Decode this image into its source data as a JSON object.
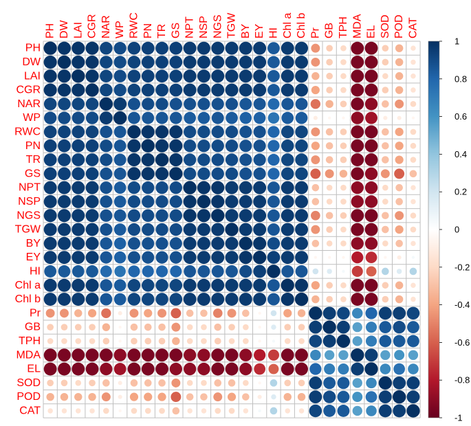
{
  "chart_data": {
    "type": "heatmap",
    "style": "circle correlation matrix",
    "variables": [
      "PH",
      "DW",
      "LAI",
      "CGR",
      "NAR",
      "WP",
      "RWC",
      "PN",
      "TR",
      "GS",
      "NPT",
      "NSP",
      "NGS",
      "TGW",
      "BY",
      "EY",
      "HI",
      "Chl a",
      "Chl b",
      "Pr",
      "GB",
      "TPH",
      "MDA",
      "EL",
      "SOD",
      "POD",
      "CAT"
    ],
    "group_a_size": 19,
    "within_a": [
      [
        1.0,
        0.98,
        0.98,
        0.98,
        0.92,
        0.9,
        0.93,
        0.94,
        0.94,
        0.94,
        0.96,
        0.96,
        0.96,
        0.96,
        0.96,
        0.96,
        0.85,
        0.96,
        0.96
      ],
      [
        0.98,
        1.0,
        0.98,
        0.98,
        0.92,
        0.9,
        0.93,
        0.94,
        0.94,
        0.94,
        0.96,
        0.96,
        0.96,
        0.96,
        0.96,
        0.96,
        0.85,
        0.96,
        0.96
      ],
      [
        0.98,
        0.98,
        1.0,
        0.98,
        0.92,
        0.9,
        0.93,
        0.94,
        0.94,
        0.94,
        0.96,
        0.96,
        0.96,
        0.96,
        0.96,
        0.96,
        0.85,
        0.96,
        0.96
      ],
      [
        0.98,
        0.98,
        0.98,
        1.0,
        0.92,
        0.9,
        0.93,
        0.94,
        0.94,
        0.94,
        0.96,
        0.96,
        0.96,
        0.96,
        0.96,
        0.96,
        0.85,
        0.96,
        0.96
      ],
      [
        0.92,
        0.92,
        0.92,
        0.92,
        1.0,
        0.96,
        0.88,
        0.9,
        0.9,
        0.88,
        0.88,
        0.88,
        0.88,
        0.88,
        0.86,
        0.86,
        0.78,
        0.86,
        0.86
      ],
      [
        0.9,
        0.9,
        0.9,
        0.9,
        0.96,
        1.0,
        0.86,
        0.86,
        0.86,
        0.86,
        0.84,
        0.84,
        0.86,
        0.84,
        0.82,
        0.82,
        0.74,
        0.84,
        0.84
      ],
      [
        0.93,
        0.93,
        0.93,
        0.93,
        0.88,
        0.86,
        1.0,
        0.98,
        0.98,
        0.98,
        0.9,
        0.9,
        0.9,
        0.9,
        0.88,
        0.88,
        0.8,
        0.92,
        0.92
      ],
      [
        0.94,
        0.94,
        0.94,
        0.94,
        0.9,
        0.86,
        0.98,
        1.0,
        0.98,
        0.98,
        0.9,
        0.9,
        0.9,
        0.9,
        0.88,
        0.88,
        0.8,
        0.92,
        0.92
      ],
      [
        0.94,
        0.94,
        0.94,
        0.94,
        0.9,
        0.86,
        0.98,
        0.98,
        1.0,
        0.98,
        0.9,
        0.9,
        0.9,
        0.9,
        0.88,
        0.88,
        0.8,
        0.92,
        0.92
      ],
      [
        0.94,
        0.94,
        0.94,
        0.94,
        0.88,
        0.86,
        0.98,
        0.98,
        0.98,
        1.0,
        0.9,
        0.9,
        0.9,
        0.9,
        0.88,
        0.88,
        0.8,
        0.92,
        0.92
      ],
      [
        0.96,
        0.96,
        0.96,
        0.96,
        0.88,
        0.84,
        0.9,
        0.9,
        0.9,
        0.9,
        1.0,
        0.98,
        0.98,
        0.96,
        0.96,
        0.96,
        0.86,
        0.96,
        0.96
      ],
      [
        0.96,
        0.96,
        0.96,
        0.96,
        0.88,
        0.84,
        0.9,
        0.9,
        0.9,
        0.9,
        0.98,
        1.0,
        0.98,
        0.96,
        0.96,
        0.96,
        0.86,
        0.96,
        0.96
      ],
      [
        0.96,
        0.96,
        0.96,
        0.96,
        0.88,
        0.86,
        0.9,
        0.9,
        0.9,
        0.9,
        0.98,
        0.98,
        1.0,
        0.96,
        0.96,
        0.96,
        0.86,
        0.96,
        0.96
      ],
      [
        0.96,
        0.96,
        0.96,
        0.96,
        0.88,
        0.84,
        0.9,
        0.9,
        0.9,
        0.9,
        0.96,
        0.96,
        0.96,
        1.0,
        0.96,
        0.96,
        0.86,
        0.96,
        0.96
      ],
      [
        0.96,
        0.96,
        0.96,
        0.96,
        0.86,
        0.82,
        0.88,
        0.88,
        0.88,
        0.88,
        0.96,
        0.96,
        0.96,
        0.96,
        1.0,
        0.98,
        0.9,
        0.96,
        0.96
      ],
      [
        0.96,
        0.96,
        0.96,
        0.96,
        0.86,
        0.82,
        0.88,
        0.88,
        0.88,
        0.88,
        0.96,
        0.96,
        0.96,
        0.96,
        0.98,
        1.0,
        0.94,
        0.96,
        0.96
      ],
      [
        0.85,
        0.85,
        0.85,
        0.85,
        0.78,
        0.74,
        0.8,
        0.8,
        0.8,
        0.8,
        0.86,
        0.86,
        0.86,
        0.86,
        0.9,
        0.94,
        1.0,
        0.86,
        0.86
      ],
      [
        0.96,
        0.96,
        0.96,
        0.96,
        0.86,
        0.84,
        0.92,
        0.92,
        0.92,
        0.92,
        0.96,
        0.96,
        0.96,
        0.96,
        0.96,
        0.96,
        0.86,
        1.0,
        0.98
      ],
      [
        0.96,
        0.96,
        0.96,
        0.96,
        0.86,
        0.84,
        0.92,
        0.92,
        0.92,
        0.92,
        0.96,
        0.96,
        0.96,
        0.96,
        0.96,
        0.96,
        0.86,
        0.98,
        1.0
      ]
    ],
    "cross_ab": [
      [
        -0.45,
        -0.25,
        -0.2,
        -0.95,
        -0.95,
        -0.25,
        -0.35,
        -0.15
      ],
      [
        -0.45,
        -0.25,
        -0.2,
        -0.95,
        -0.95,
        -0.25,
        -0.35,
        -0.15
      ],
      [
        -0.35,
        -0.25,
        -0.2,
        -0.95,
        -0.95,
        -0.2,
        -0.35,
        -0.15
      ],
      [
        -0.4,
        -0.25,
        -0.2,
        -0.95,
        -0.95,
        -0.25,
        -0.35,
        -0.15
      ],
      [
        -0.55,
        -0.35,
        -0.25,
        -0.95,
        -0.9,
        -0.3,
        -0.45,
        -0.2
      ],
      [
        -0.1,
        -0.05,
        -0.05,
        -0.9,
        -0.85,
        -0.1,
        -0.1,
        -0.05
      ],
      [
        -0.45,
        -0.3,
        -0.25,
        -0.95,
        -0.95,
        -0.3,
        -0.4,
        -0.2
      ],
      [
        -0.4,
        -0.3,
        -0.25,
        -0.95,
        -0.95,
        -0.3,
        -0.4,
        -0.2
      ],
      [
        -0.45,
        -0.3,
        -0.25,
        -0.95,
        -0.95,
        -0.3,
        -0.4,
        -0.2
      ],
      [
        -0.6,
        -0.45,
        -0.35,
        -0.95,
        -0.9,
        -0.45,
        -0.6,
        -0.3
      ],
      [
        -0.3,
        -0.2,
        -0.2,
        -0.9,
        -0.9,
        -0.2,
        -0.3,
        -0.15
      ],
      [
        -0.3,
        -0.2,
        -0.2,
        -0.9,
        -0.9,
        -0.2,
        -0.3,
        -0.15
      ],
      [
        -0.5,
        -0.3,
        -0.25,
        -0.95,
        -0.95,
        -0.3,
        -0.45,
        -0.2
      ],
      [
        -0.45,
        -0.25,
        -0.2,
        -0.95,
        -0.95,
        -0.3,
        -0.4,
        -0.2
      ],
      [
        -0.3,
        -0.2,
        -0.2,
        -0.9,
        -0.9,
        -0.2,
        -0.3,
        -0.15
      ],
      [
        -0.05,
        -0.05,
        -0.05,
        -0.8,
        -0.75,
        -0.05,
        -0.1,
        0.05
      ],
      [
        0.2,
        0.15,
        0.05,
        -0.7,
        -0.6,
        0.3,
        0.15,
        0.3
      ],
      [
        -0.4,
        -0.25,
        -0.2,
        -0.95,
        -0.95,
        -0.25,
        -0.35,
        -0.15
      ],
      [
        -0.35,
        -0.25,
        -0.2,
        -0.95,
        -0.95,
        -0.25,
        -0.35,
        -0.15
      ]
    ],
    "within_b": [
      [
        1.0,
        0.95,
        0.92,
        0.65,
        0.8,
        0.95,
        0.95,
        0.92
      ],
      [
        0.95,
        1.0,
        0.95,
        0.55,
        0.7,
        0.85,
        0.9,
        0.85
      ],
      [
        0.92,
        0.95,
        1.0,
        0.55,
        0.7,
        0.85,
        0.85,
        0.85
      ],
      [
        0.65,
        0.55,
        0.55,
        1.0,
        0.95,
        0.55,
        0.6,
        0.55
      ],
      [
        0.8,
        0.7,
        0.7,
        0.95,
        1.0,
        0.65,
        0.75,
        0.65
      ],
      [
        0.95,
        0.85,
        0.85,
        0.55,
        0.65,
        1.0,
        0.95,
        0.95
      ],
      [
        0.95,
        0.9,
        0.85,
        0.6,
        0.75,
        0.95,
        1.0,
        0.95
      ],
      [
        0.92,
        0.85,
        0.85,
        0.55,
        0.65,
        0.95,
        0.95,
        1.0
      ]
    ],
    "color_scale": {
      "min": -1,
      "max": 1,
      "ticks": [
        "1",
        "0.8",
        "0.6",
        "0.4",
        "0.2",
        "0",
        "-0.2",
        "-0.4",
        "-0.6",
        "-0.8",
        "-1"
      ],
      "stops": [
        "#67001f",
        "#b2182b",
        "#d6604d",
        "#f4a582",
        "#fddbc7",
        "#ffffff",
        "#d1e5f0",
        "#92c5de",
        "#4393c3",
        "#2166ac",
        "#053061"
      ]
    },
    "label_color": "#ff0000",
    "grid_color": "#bfbfbf"
  }
}
